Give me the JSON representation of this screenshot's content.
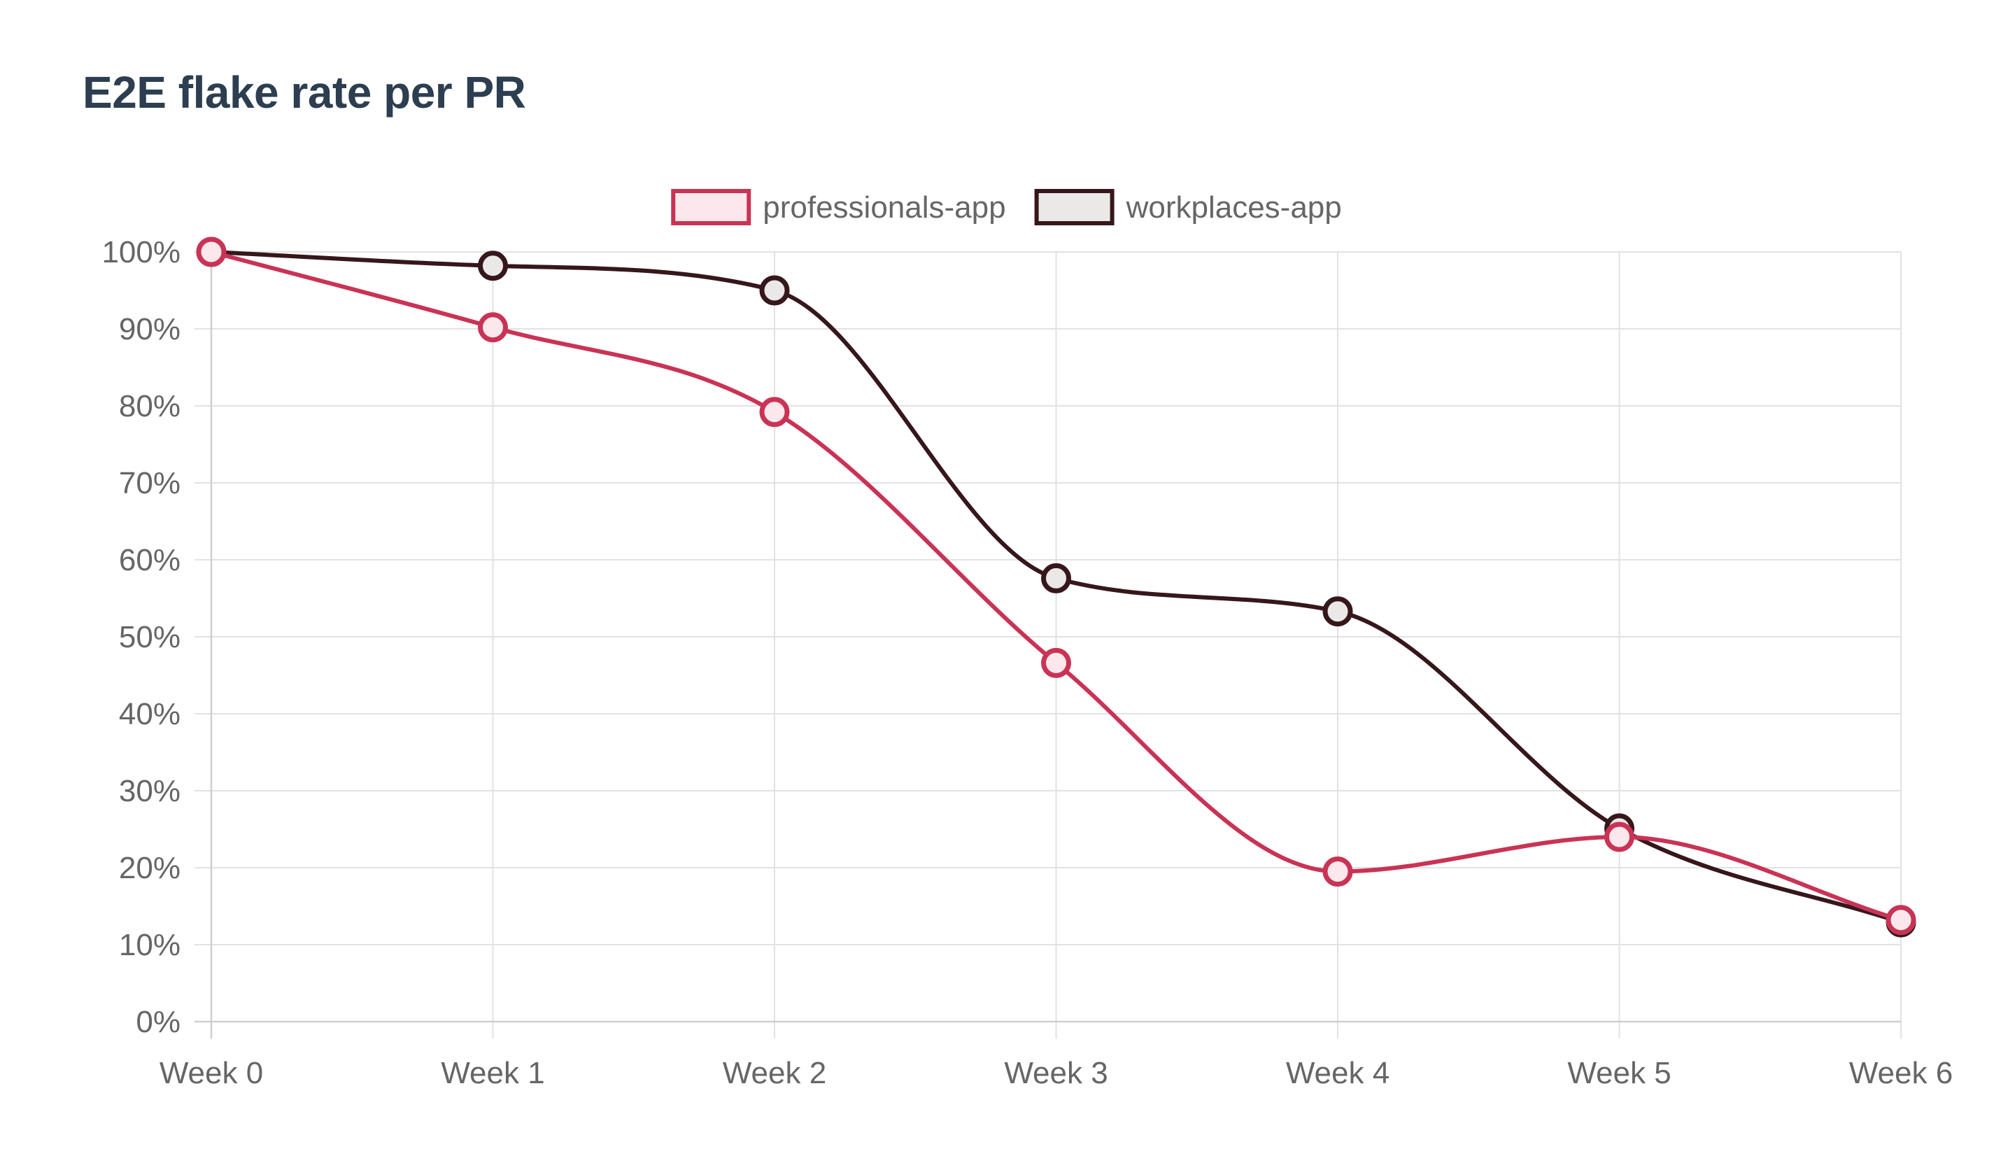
{
  "chart_data": {
    "type": "line",
    "title": "E2E flake rate per PR",
    "xlabel": "",
    "ylabel": "",
    "categories": [
      "Week 0",
      "Week 1",
      "Week 2",
      "Week 3",
      "Week 4",
      "Week 5",
      "Week 6"
    ],
    "y_ticks": [
      "0%",
      "10%",
      "20%",
      "30%",
      "40%",
      "50%",
      "60%",
      "70%",
      "80%",
      "90%",
      "100%"
    ],
    "ylim": [
      0,
      100
    ],
    "grid": true,
    "legend_position": "top-center",
    "series": [
      {
        "name": "professionals-app",
        "values": [
          100,
          90.2,
          79.2,
          46.6,
          19.5,
          24.0,
          13.2
        ],
        "color": "#c93355",
        "fill": "#fbe7ec"
      },
      {
        "name": "workplaces-app",
        "values": [
          100,
          98.2,
          95.0,
          57.6,
          53.3,
          25.1,
          12.9
        ],
        "color": "#36171b",
        "fill": "#ebe8e8"
      }
    ]
  }
}
